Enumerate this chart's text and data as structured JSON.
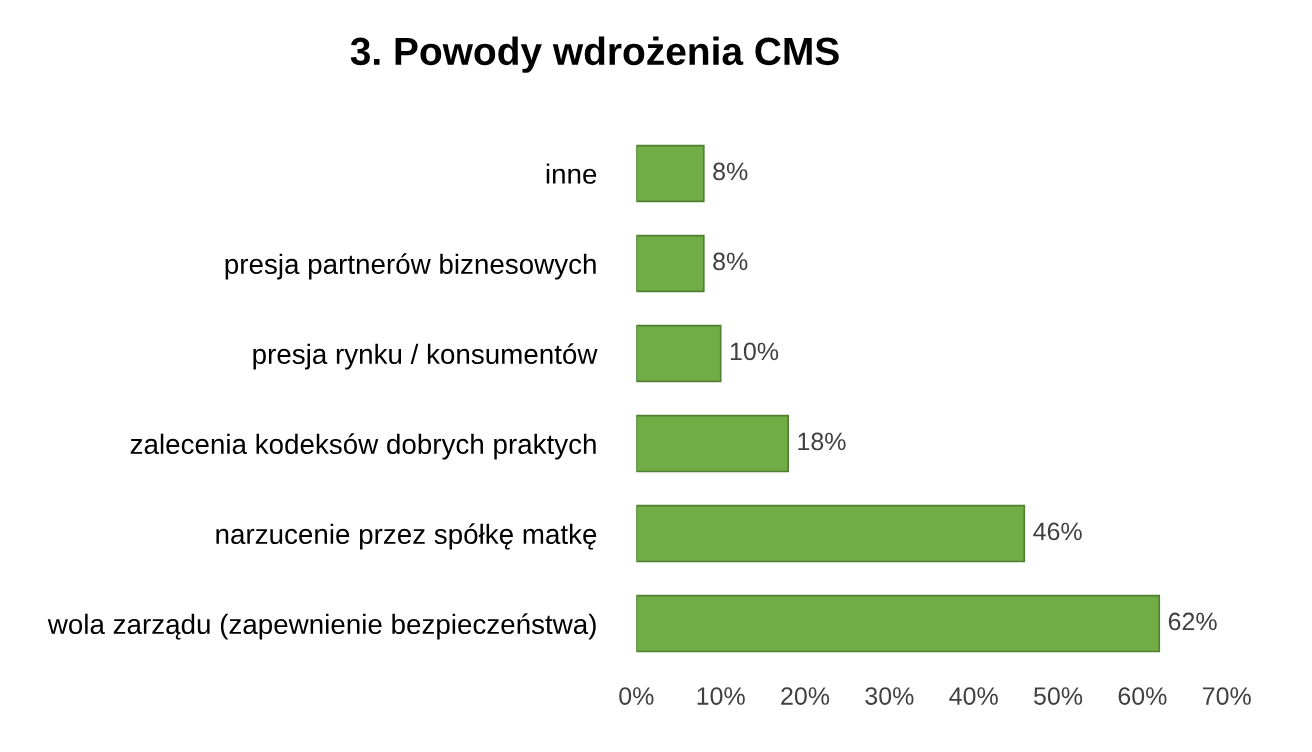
{
  "chart_data": {
    "type": "bar",
    "orientation": "horizontal",
    "title": "3. Powody wdrożenia CMS",
    "categories": [
      "inne",
      "presja partnerów biznesowych",
      "presja rynku / konsumentów",
      "zalecenia kodeksów dobrych praktych",
      "narzucenie przez spółkę matkę",
      "wola zarządu (zapewnienie bezpieczeństwa)"
    ],
    "values": [
      8,
      8,
      10,
      18,
      46,
      62
    ],
    "value_labels": [
      "8%",
      "8%",
      "10%",
      "18%",
      "46%",
      "62%"
    ],
    "color": "#70ad47",
    "xlim": [
      0,
      70
    ],
    "xticks": [
      {
        "value": 0,
        "label": "0%"
      },
      {
        "value": 10,
        "label": "10%"
      },
      {
        "value": 20,
        "label": "20%"
      },
      {
        "value": 30,
        "label": "30%"
      },
      {
        "value": 40,
        "label": "40%"
      },
      {
        "value": 50,
        "label": "50%"
      },
      {
        "value": 60,
        "label": "60%"
      },
      {
        "value": 70,
        "label": "70%"
      }
    ],
    "grid": false
  }
}
